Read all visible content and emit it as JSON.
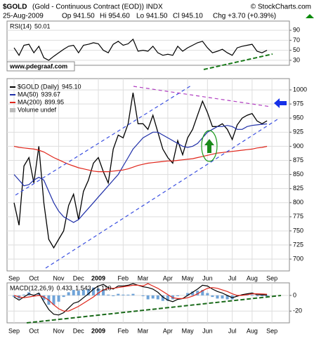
{
  "header": {
    "symbol": "$GOLD",
    "name": "(Gold - Continuous Contract (EOD)) INDX",
    "copyright": "© StockCharts.com",
    "date": "25-Aug-2009",
    "ohlc": [
      "Op 941.50",
      "Hi 954.60",
      "Lo 941.50",
      "Cl 945.10"
    ],
    "change": "Chg +3.70 (+0.39%)",
    "watermark": "www.pdegraaf.com"
  },
  "chart_data": [
    {
      "type": "line",
      "title": "RSI(14)",
      "label": "50.01",
      "ylim": [
        20,
        100
      ],
      "yticks": [
        90,
        70,
        50,
        30
      ],
      "grid": true,
      "series": [
        {
          "color": "#000000",
          "values": [
            55,
            40,
            60,
            62,
            45,
            58,
            35,
            30,
            38,
            45,
            52,
            58,
            60,
            45,
            60,
            62,
            65,
            63,
            50,
            45,
            62,
            68,
            60,
            63,
            72,
            48,
            50,
            48,
            58,
            45,
            40,
            42,
            40,
            58,
            48,
            55,
            60,
            65,
            68,
            55,
            45,
            48,
            52,
            45,
            40,
            55,
            58,
            60,
            62,
            48,
            45,
            50.01,
            null
          ]
        }
      ]
    },
    {
      "type": "line",
      "note": "Volume undef",
      "ylim": [
        679,
        1020
      ],
      "yticks": [
        1000,
        975,
        950,
        925,
        900,
        875,
        850,
        825,
        800,
        775,
        750,
        725,
        700
      ],
      "grid": true,
      "categories": [
        "Sep",
        null,
        null,
        null,
        "Oct",
        null,
        null,
        null,
        null,
        "Nov",
        null,
        null,
        null,
        "Dec",
        null,
        null,
        null,
        "2009",
        null,
        null,
        null,
        null,
        "Feb",
        null,
        null,
        null,
        "Mar",
        null,
        null,
        null,
        null,
        "Apr",
        null,
        null,
        null,
        "May",
        null,
        null,
        null,
        "Jun",
        null,
        null,
        null,
        null,
        "Jul",
        null,
        null,
        null,
        "Aug",
        null,
        null,
        null,
        "Sep"
      ],
      "series": [
        {
          "name": "$GOLD (Daily)",
          "label": "945.10",
          "color": "#000000",
          "values": [
            800,
            760,
            865,
            880,
            835,
            900,
            800,
            735,
            720,
            735,
            750,
            795,
            815,
            770,
            820,
            840,
            870,
            880,
            855,
            835,
            895,
            920,
            915,
            940,
            995,
            940,
            940,
            930,
            955,
            925,
            895,
            880,
            870,
            910,
            885,
            915,
            930,
            955,
            980,
            960,
            935,
            935,
            940,
            930,
            912,
            938,
            950,
            955,
            958,
            945,
            940,
            945.1,
            null
          ]
        },
        {
          "name": "MA(50)",
          "label": "939.67",
          "color": "#1f2fa8",
          "values": [
            850,
            840,
            830,
            832,
            840,
            845,
            840,
            820,
            800,
            785,
            775,
            770,
            765,
            770,
            780,
            790,
            800,
            810,
            820,
            830,
            840,
            850,
            865,
            880,
            895,
            905,
            915,
            920,
            925,
            925,
            920,
            915,
            910,
            905,
            900,
            898,
            900,
            905,
            915,
            925,
            930,
            935,
            935,
            937,
            935,
            930,
            930,
            935,
            937,
            938,
            939,
            939.67,
            null
          ]
        },
        {
          "name": "MA(200)",
          "label": "899.95",
          "color": "#e0261b",
          "values": [
            900,
            898,
            897,
            896,
            895,
            893,
            890,
            885,
            880,
            876,
            872,
            868,
            865,
            862,
            860,
            858,
            856,
            855,
            855,
            855,
            856,
            857,
            858,
            860,
            863,
            866,
            868,
            870,
            871,
            872,
            873,
            874,
            874,
            875,
            876,
            877,
            878,
            880,
            882,
            884,
            886,
            888,
            889,
            890,
            891,
            892,
            893,
            894,
            895,
            897,
            898,
            899.95,
            null
          ]
        }
      ]
    },
    {
      "type": "line",
      "title": "MACD(12,26,9)",
      "ylim": [
        -35,
        16
      ],
      "yticks": [
        0,
        -20
      ],
      "grid": true,
      "categories": [
        "Sep",
        null,
        null,
        null,
        "Oct",
        null,
        null,
        null,
        null,
        "Nov",
        null,
        null,
        null,
        "Dec",
        null,
        null,
        null,
        "2009",
        null,
        null,
        null,
        null,
        "Feb",
        null,
        null,
        null,
        "Mar",
        null,
        null,
        null,
        null,
        "Apr",
        null,
        null,
        null,
        "May",
        null,
        null,
        null,
        "Jun",
        null,
        null,
        null,
        null,
        "Jul",
        null,
        null,
        null,
        "Aug",
        null,
        null,
        null,
        "Sep"
      ],
      "series": [
        {
          "label": "-1.110",
          "style": "bar",
          "color": "#6fa3d8",
          "values": [
            -2,
            -4,
            1,
            4,
            1,
            3,
            -6,
            -12,
            -12,
            -8,
            -2,
            4,
            7,
            6,
            7,
            8,
            10,
            9,
            7,
            1,
            -1,
            2,
            1,
            1,
            2,
            0,
            -1,
            -5,
            -4,
            -5,
            -7,
            -7,
            -5,
            -1,
            0,
            3,
            5,
            6,
            7,
            3,
            -2,
            -4,
            -4,
            -5,
            -5,
            -1,
            1,
            1,
            1,
            -1,
            -1,
            -1.11,
            null
          ]
        },
        {
          "label": "0.433",
          "color": "#000000",
          "values": [
            -2,
            -6,
            -2,
            2,
            0,
            3,
            -8,
            -18,
            -24,
            -25,
            -22,
            -16,
            -10,
            -8,
            -3,
            2,
            8,
            12,
            14,
            10,
            8,
            12,
            12,
            13,
            15,
            13,
            11,
            10,
            8,
            4,
            -2,
            -6,
            -8,
            -5,
            -4,
            0,
            4,
            8,
            13,
            12,
            8,
            5,
            3,
            0,
            -3,
            -1,
            1,
            2,
            3,
            1,
            0.8,
            0.433,
            null
          ]
        },
        {
          "label": "1.543",
          "color": "#e0261b",
          "values": [
            0,
            -2,
            -3,
            -2,
            -1,
            0,
            -2,
            -6,
            -12,
            -17,
            -20,
            -20,
            -17,
            -14,
            -10,
            -6,
            -2,
            3,
            7,
            9,
            9,
            10,
            11,
            12,
            13,
            13,
            12,
            15,
            12,
            9,
            5,
            1,
            -3,
            -4,
            -4,
            -3,
            -1,
            2,
            6,
            9,
            10,
            9,
            7,
            5,
            2,
            0,
            0,
            1,
            2,
            2,
            1.8,
            1.543,
            null
          ]
        }
      ]
    }
  ]
}
